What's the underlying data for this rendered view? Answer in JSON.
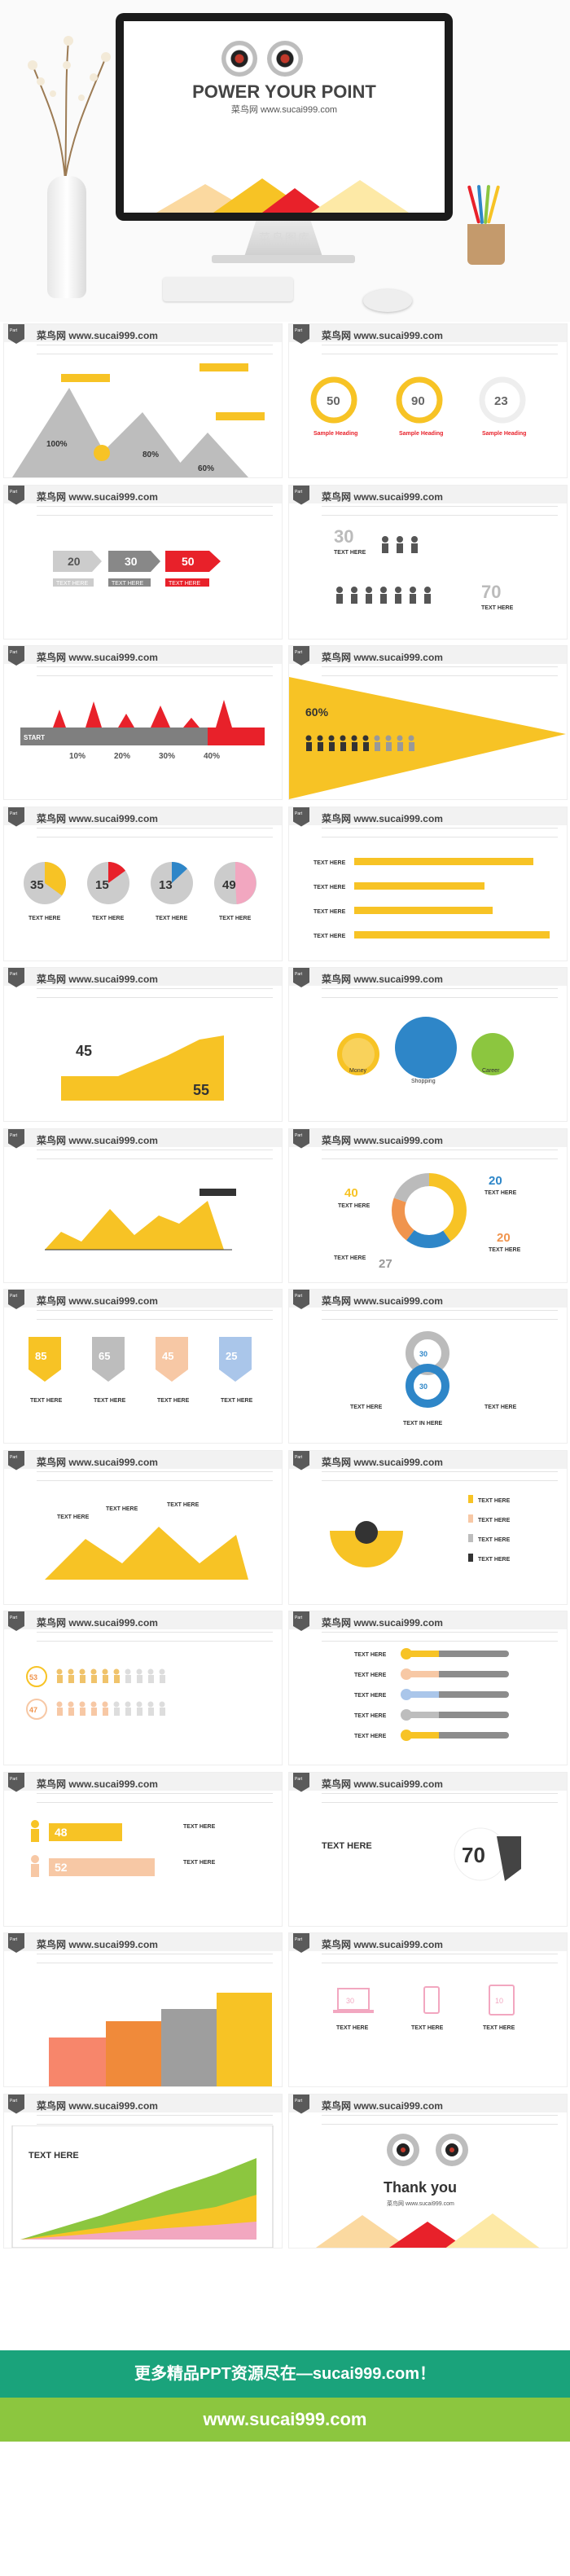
{
  "hero": {
    "title": "POWER YOUR POINT",
    "subtitle": "菜鸟网 www.sucai999.com",
    "watermark": "菜鸟图库"
  },
  "site_label": "菜鸟网 www.sucai999.com",
  "tab_label": "Part",
  "slides": [
    {
      "texts": [
        "100%",
        "80%",
        "60%"
      ]
    },
    {
      "texts": [
        "50",
        "90",
        "23",
        "Sample Heading",
        "Sample Heading",
        "Sample Heading"
      ]
    },
    {
      "texts": [
        "20",
        "30",
        "50",
        "TEXT HERE",
        "TEXT HERE",
        "TEXT HERE"
      ]
    },
    {
      "texts": [
        "30",
        "TEXT HERE",
        "70",
        "TEXT HERE"
      ]
    },
    {
      "texts": [
        "START",
        "10%",
        "20%",
        "30%",
        "40%"
      ]
    },
    {
      "texts": [
        "60%"
      ]
    },
    {
      "texts": [
        "35",
        "15",
        "13",
        "49",
        "TEXT HERE",
        "TEXT HERE",
        "TEXT HERE",
        "TEXT HERE"
      ]
    },
    {
      "texts": [
        "TEXT HERE",
        "TEXT HERE",
        "TEXT HERE",
        "TEXT HERE"
      ]
    },
    {
      "texts": [
        "45",
        "55"
      ]
    },
    {
      "texts": [
        "Money",
        "Shopping",
        "Career"
      ]
    },
    {
      "texts": []
    },
    {
      "texts": [
        "40",
        "20",
        "20",
        "27",
        "TEXT HERE",
        "TEXT HERE",
        "TEXT HERE",
        "TEXT HERE"
      ]
    },
    {
      "texts": [
        "85",
        "65",
        "45",
        "25",
        "TEXT HERE",
        "TEXT HERE",
        "TEXT HERE",
        "TEXT HERE"
      ]
    },
    {
      "texts": [
        "30",
        "30",
        "TEXT HERE",
        "TEXT HERE",
        "TEXT IN HERE"
      ]
    },
    {
      "texts": [
        "TEXT HERE",
        "TEXT HERE",
        "TEXT HERE"
      ]
    },
    {
      "texts": [
        "TEXT HERE",
        "TEXT HERE",
        "TEXT HERE",
        "TEXT HERE"
      ]
    },
    {
      "texts": [
        "53",
        "47"
      ]
    },
    {
      "texts": [
        "TEXT HERE",
        "TEXT HERE",
        "TEXT HERE",
        "TEXT HERE",
        "TEXT HERE"
      ]
    },
    {
      "texts": [
        "48",
        "52",
        "TEXT HERE",
        "TEXT HERE"
      ]
    },
    {
      "texts": [
        "TEXT HERE",
        "70"
      ]
    },
    {
      "texts": []
    },
    {
      "texts": [
        "30",
        "10",
        "TEXT HERE",
        "TEXT HERE",
        "TEXT HERE"
      ]
    },
    {
      "texts": [
        "TEXT HERE"
      ]
    },
    {
      "texts": [
        "Thank you",
        "菜鸟网 www.sucai999.com"
      ]
    }
  ],
  "footer": {
    "line1": "更多精品PPT资源尽在—sucai999.com！",
    "line2": "www.sucai999.com"
  },
  "colors": {
    "yellow": "#f7c325",
    "red": "#e8212a",
    "grey": "#7f7f7f",
    "blue": "#2e86c8",
    "pink": "#f2a7c0",
    "green_bar": "#1aa37b",
    "lime_bar": "#8cc63f"
  }
}
